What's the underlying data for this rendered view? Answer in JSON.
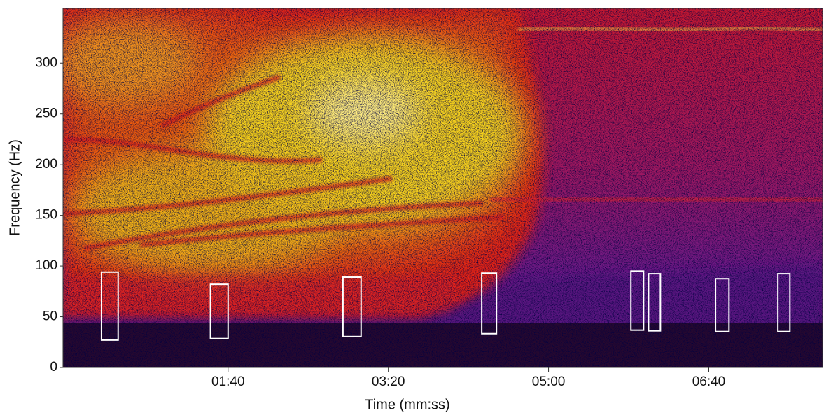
{
  "chart_data": {
    "type": "spectrogram",
    "xlabel": "Time (mm:ss)",
    "ylabel": "Frequency (Hz)",
    "xlim": [
      -3,
      471
    ],
    "ylim": [
      0,
      354
    ],
    "xticks": [
      {
        "value": 100,
        "label": "01:40"
      },
      {
        "value": 200,
        "label": "03:20"
      },
      {
        "value": 300,
        "label": "05:00"
      },
      {
        "value": 400,
        "label": "06:40"
      }
    ],
    "yticks": [
      0,
      50,
      100,
      150,
      200,
      250,
      300
    ],
    "box_color": "#ffffff",
    "boxes": [
      {
        "x": [
          21,
          31.4
        ],
        "y": [
          27,
          94
        ]
      },
      {
        "x": [
          89,
          100
        ],
        "y": [
          28.5,
          82
        ]
      },
      {
        "x": [
          171.7,
          183
        ],
        "y": [
          30.5,
          89
        ]
      },
      {
        "x": [
          258.3,
          267.5
        ],
        "y": [
          33.3,
          93
        ]
      },
      {
        "x": [
          351.4,
          359.3
        ],
        "y": [
          36.8,
          95
        ]
      },
      {
        "x": [
          362.4,
          369.8
        ],
        "y": [
          36.1,
          92.4
        ]
      },
      {
        "x": [
          404.2,
          412.6
        ],
        "y": [
          35.4,
          87.5
        ]
      },
      {
        "x": [
          443.1,
          450.6
        ],
        "y": [
          35.4,
          92.4
        ]
      }
    ]
  }
}
